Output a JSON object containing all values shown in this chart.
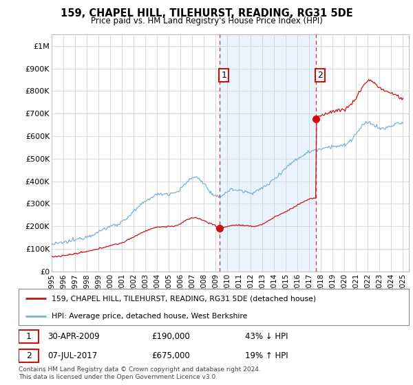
{
  "title": "159, CHAPEL HILL, TILEHURST, READING, RG31 5DE",
  "subtitle": "Price paid vs. HM Land Registry's House Price Index (HPI)",
  "ylabel_ticks": [
    "£0",
    "£100K",
    "£200K",
    "£300K",
    "£400K",
    "£500K",
    "£600K",
    "£700K",
    "£800K",
    "£900K",
    "£1M"
  ],
  "ytick_values": [
    0,
    100000,
    200000,
    300000,
    400000,
    500000,
    600000,
    700000,
    800000,
    900000,
    1000000
  ],
  "xlim_start": 1995.0,
  "xlim_end": 2025.5,
  "ylim_min": 0,
  "ylim_max": 1050000,
  "hpi_color": "#7bafd4",
  "price_color": "#cc1111",
  "shade_color": "#ddeeff",
  "sale1_date": 2009.33,
  "sale1_price": 190000,
  "sale2_date": 2017.54,
  "sale2_price": 675000,
  "legend_line1": "159, CHAPEL HILL, TILEHURST, READING, RG31 5DE (detached house)",
  "legend_line2": "HPI: Average price, detached house, West Berkshire",
  "ann1_box": "1",
  "ann1_date": "30-APR-2009",
  "ann1_price": "£190,000",
  "ann1_pct": "43% ↓ HPI",
  "ann2_box": "2",
  "ann2_date": "07-JUL-2017",
  "ann2_price": "£675,000",
  "ann2_pct": "19% ↑ HPI",
  "footer": "Contains HM Land Registry data © Crown copyright and database right 2024.\nThis data is licensed under the Open Government Licence v3.0.",
  "background_color": "#ffffff",
  "grid_color": "#cccccc"
}
